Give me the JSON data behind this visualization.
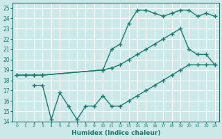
{
  "xlabel": "Humidex (Indice chaleur)",
  "bg_color": "#cce8e8",
  "line_color": "#1a7a6e",
  "grid_color": "#ffffff",
  "xlim": [
    -0.5,
    23.5
  ],
  "ylim": [
    14,
    25.5
  ],
  "xticks": [
    0,
    1,
    2,
    3,
    4,
    5,
    6,
    7,
    8,
    9,
    10,
    11,
    12,
    13,
    14,
    15,
    16,
    17,
    18,
    19,
    20,
    21,
    22,
    23
  ],
  "yticks": [
    14,
    15,
    16,
    17,
    18,
    19,
    20,
    21,
    22,
    23,
    24,
    25
  ],
  "line1_x": [
    0,
    1,
    2,
    3,
    10,
    11,
    12,
    13,
    14,
    15,
    16,
    17,
    18,
    19,
    20,
    21,
    22,
    23
  ],
  "line1_y": [
    18.5,
    18.5,
    18.5,
    18.5,
    19.0,
    21.0,
    21.5,
    23.5,
    24.8,
    24.8,
    24.5,
    24.2,
    24.5,
    24.8,
    24.8,
    24.2,
    24.5,
    24.2
  ],
  "line2_x": [
    0,
    1,
    2,
    3,
    10,
    11,
    12,
    13,
    14,
    15,
    16,
    17,
    18,
    19,
    20,
    21,
    22,
    23
  ],
  "line2_y": [
    18.5,
    18.5,
    18.5,
    18.5,
    19.0,
    19.2,
    19.5,
    20.0,
    20.5,
    21.0,
    21.5,
    22.0,
    22.5,
    23.0,
    21.0,
    20.5,
    20.5,
    19.5
  ],
  "line3_x": [
    2,
    3,
    4,
    5,
    6,
    7,
    8,
    9,
    10,
    11,
    12,
    13,
    14,
    15,
    16,
    17,
    18,
    19,
    20,
    21,
    22,
    23
  ],
  "line3_y": [
    17.5,
    17.5,
    14.2,
    16.8,
    15.5,
    14.2,
    15.5,
    15.5,
    16.5,
    15.5,
    15.5,
    16.0,
    16.5,
    17.0,
    17.5,
    18.0,
    18.5,
    19.0,
    19.5,
    19.5,
    19.5,
    19.5
  ],
  "marker": "+",
  "markersize": 4,
  "linewidth": 1.0
}
